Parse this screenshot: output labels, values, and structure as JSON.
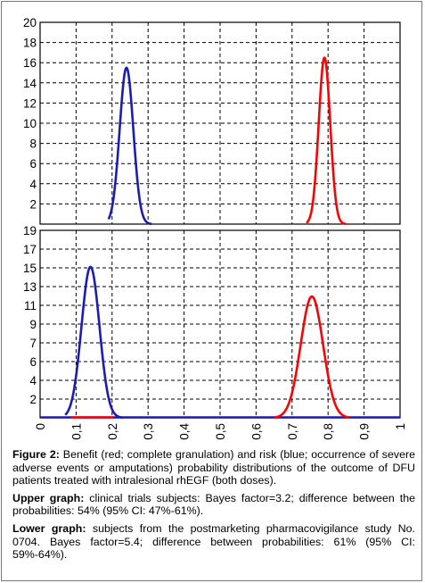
{
  "chart_data": [
    {
      "type": "line",
      "panel": "upper",
      "xlim": [
        0,
        1
      ],
      "ylim": [
        0,
        20
      ],
      "yticks": [
        "2",
        "4",
        "6",
        "8",
        "10",
        "12",
        "14",
        "16",
        "18",
        "20"
      ],
      "grid": true,
      "series": [
        {
          "color": "#1c1cb4",
          "mean": 0.24,
          "sd": 0.019,
          "peak": 15.5,
          "support": [
            0.19,
            0.31
          ]
        },
        {
          "color": "#ff0000",
          "mean": 0.79,
          "sd": 0.016,
          "peak": 16.5,
          "support": [
            0.74,
            0.85
          ]
        }
      ]
    },
    {
      "type": "line",
      "panel": "lower",
      "xlim": [
        0,
        1
      ],
      "ylim": [
        0,
        19
      ],
      "yticks": [
        "2",
        "4",
        "6",
        "7",
        "9",
        "11",
        "13",
        "15",
        "17",
        "19"
      ],
      "xticks": [
        "0",
        "0,1",
        "0,2",
        "0,3",
        "0,4",
        "0,5",
        "0,6",
        "0,7",
        "0,8",
        "0,9",
        "1"
      ],
      "grid": true,
      "series": [
        {
          "color": "#1c1cb4",
          "mean": 0.14,
          "sd": 0.025,
          "peak": 15.3,
          "support": [
            0.07,
            0.23
          ]
        },
        {
          "color": "#ff0000",
          "mean": 0.755,
          "sd": 0.031,
          "peak": 12.3,
          "support": [
            0.65,
            0.86
          ]
        }
      ]
    }
  ],
  "caption": {
    "fig_label": "Figure 2:",
    "fig_text": " Benefit (red; complete granulation) and risk (blue; occurrence of severe adverse events or amputations) probability distributions of the outcome of DFU patients treated with intralesional rhEGF (both doses).",
    "upper_label": "Upper graph:",
    "upper_text": " clinical trials subjects: Bayes factor=3.2; difference between the probabilities: 54% (95% CI: 47%-61%).",
    "lower_label": "Lower graph:",
    "lower_text": " subjects from the postmarketing pharmacovigilance study No. 0704. Bayes factor=5.4; difference between probabilities: 61% (95% CI: 59%-64%)."
  },
  "colors": {
    "grid": "#000000",
    "frame": "#000000",
    "risk": "#1c1cb4",
    "benefit": "#ff0000"
  }
}
